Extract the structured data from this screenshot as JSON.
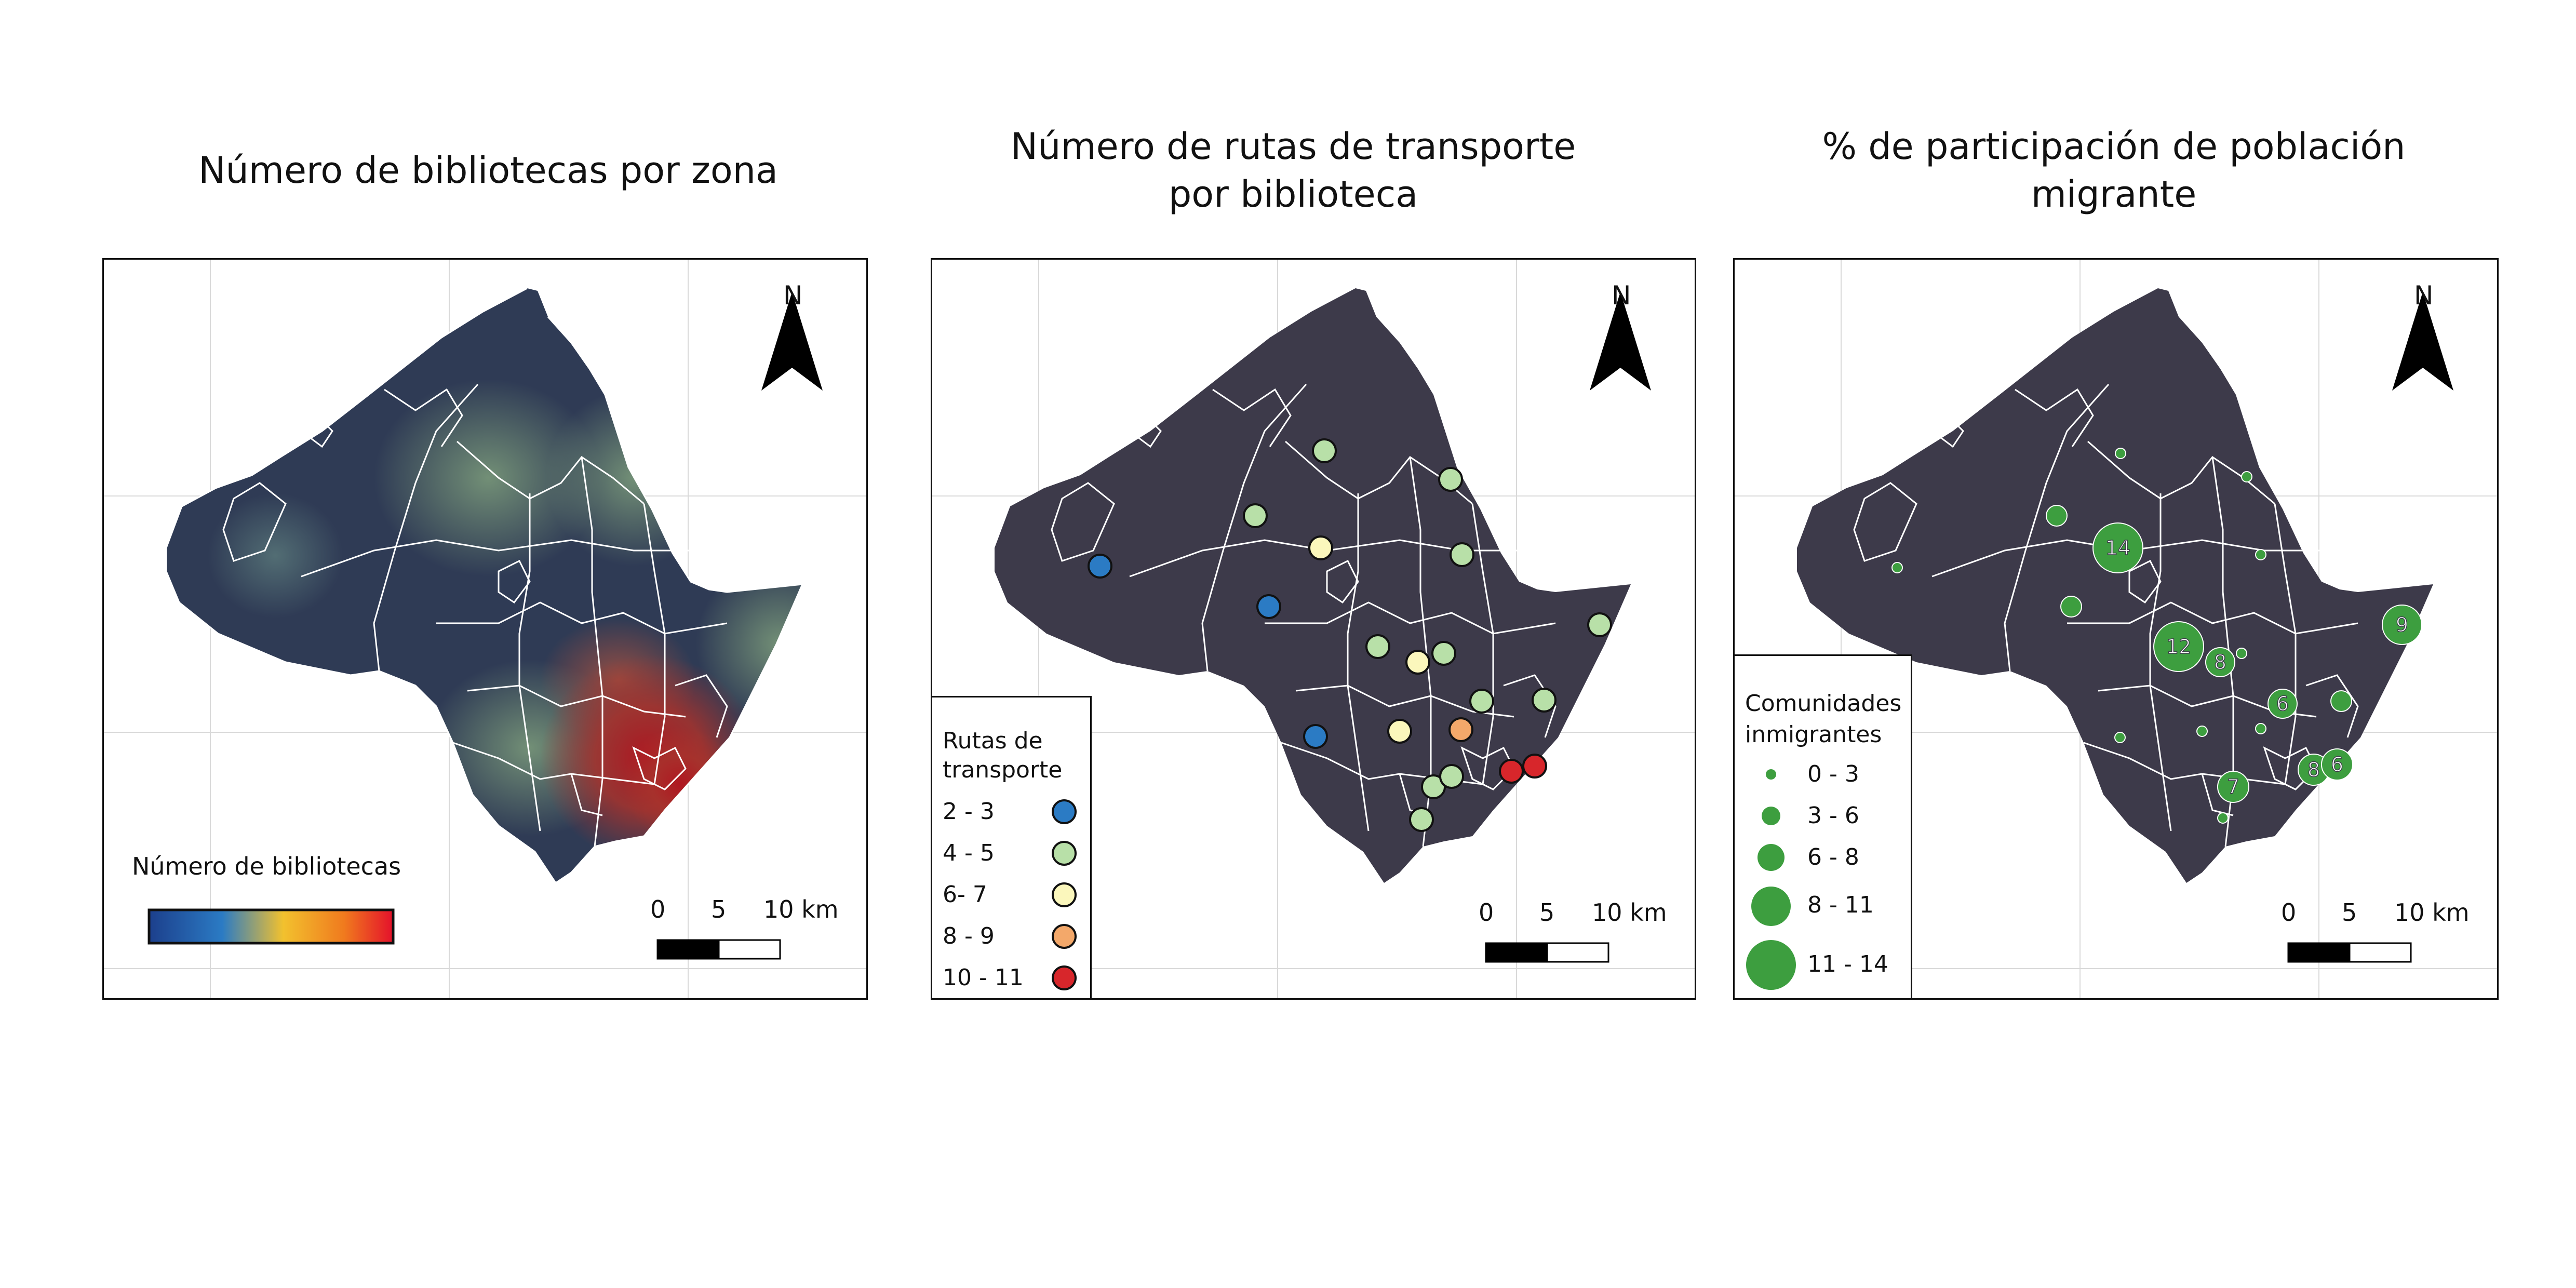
{
  "panels": [
    {
      "title": "Número de bibliotecas por zona",
      "legend": {
        "title": "Número de bibliotecas",
        "gradient": [
          "#1c3f8c",
          "#2b7bc4",
          "#f2c12e",
          "#f07a1e",
          "#e4112b"
        ]
      }
    },
    {
      "title": "Número de rutas de transporte por biblioteca",
      "legend": {
        "title": "Rutas de transporte",
        "items": [
          {
            "label": "2 - 3",
            "color": "#2b7bc4"
          },
          {
            "label": "4 - 5",
            "color": "#b8e0a8"
          },
          {
            "label": "6- 7",
            "color": "#fbf7bc"
          },
          {
            "label": "8 - 9",
            "color": "#f3a86a"
          },
          {
            "label": "10 - 11",
            "color": "#d7262b"
          }
        ]
      }
    },
    {
      "title": "% de participación de población migrante",
      "legend": {
        "title": "Comunidades inmigrantes",
        "items": [
          {
            "label": "0 - 3"
          },
          {
            "label": "3 - 6"
          },
          {
            "label": "6 - 8"
          },
          {
            "label": "8 - 11"
          },
          {
            "label": "11 - 14"
          }
        ]
      },
      "labels": [
        "14",
        "12",
        "8",
        "9",
        "6",
        "7",
        "8",
        "6"
      ]
    }
  ],
  "north_label": "N",
  "scale": {
    "l0": "0",
    "l1": "5",
    "l2": "10 km"
  },
  "colors": {
    "land": "#3d3a4a",
    "boundary": "#ffffff",
    "circle_green": "#3d9e3f",
    "grid": "#d9d9d9"
  }
}
